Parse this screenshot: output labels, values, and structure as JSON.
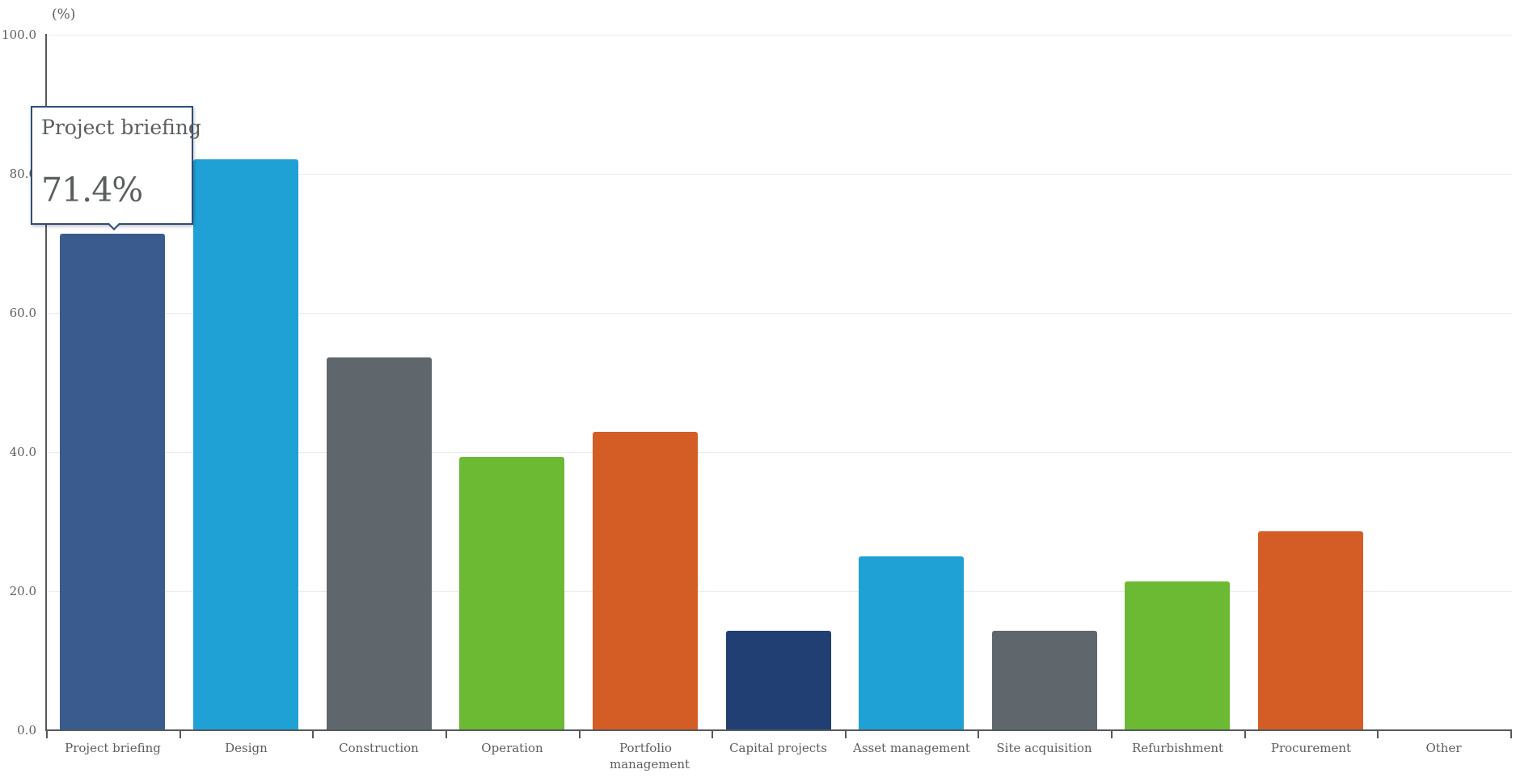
{
  "chart_data": {
    "type": "bar",
    "title": "",
    "xlabel": "",
    "ylabel": "(%)",
    "ylim": [
      0,
      100
    ],
    "yticks": [
      "0.0",
      "20.0",
      "40.0",
      "60.0",
      "80.0",
      "100.0"
    ],
    "grid": true,
    "legend": null,
    "categories": [
      "Project briefing",
      "Design",
      "Construction",
      "Operation",
      "Portfolio management",
      "Capital projects",
      "Asset management",
      "Site acquisition",
      "Refurbishment",
      "Procurement",
      "Other"
    ],
    "values": [
      71.4,
      82.1,
      53.6,
      39.3,
      42.9,
      14.3,
      25.0,
      14.3,
      21.4,
      28.6,
      0.0
    ],
    "colors": [
      "#3a5b8d",
      "#1fa1d6",
      "#5f676c",
      "#6cb933",
      "#d45d26",
      "#213f73",
      "#1fa1d6",
      "#5f676c",
      "#6cb933",
      "#d45d26",
      "#5f676c"
    ]
  },
  "axis": {
    "unit_label": "(%)",
    "y_ticks": [
      {
        "label": "100.0",
        "value": 100
      },
      {
        "label": "80.0",
        "value": 80
      },
      {
        "label": "60.0",
        "value": 60
      },
      {
        "label": "40.0",
        "value": 40
      },
      {
        "label": "20.0",
        "value": 20
      },
      {
        "label": "0.0",
        "value": 0
      }
    ]
  },
  "tooltip": {
    "title": "Project briefing",
    "value": "71.4%",
    "border_color": "#2e4d7b"
  }
}
